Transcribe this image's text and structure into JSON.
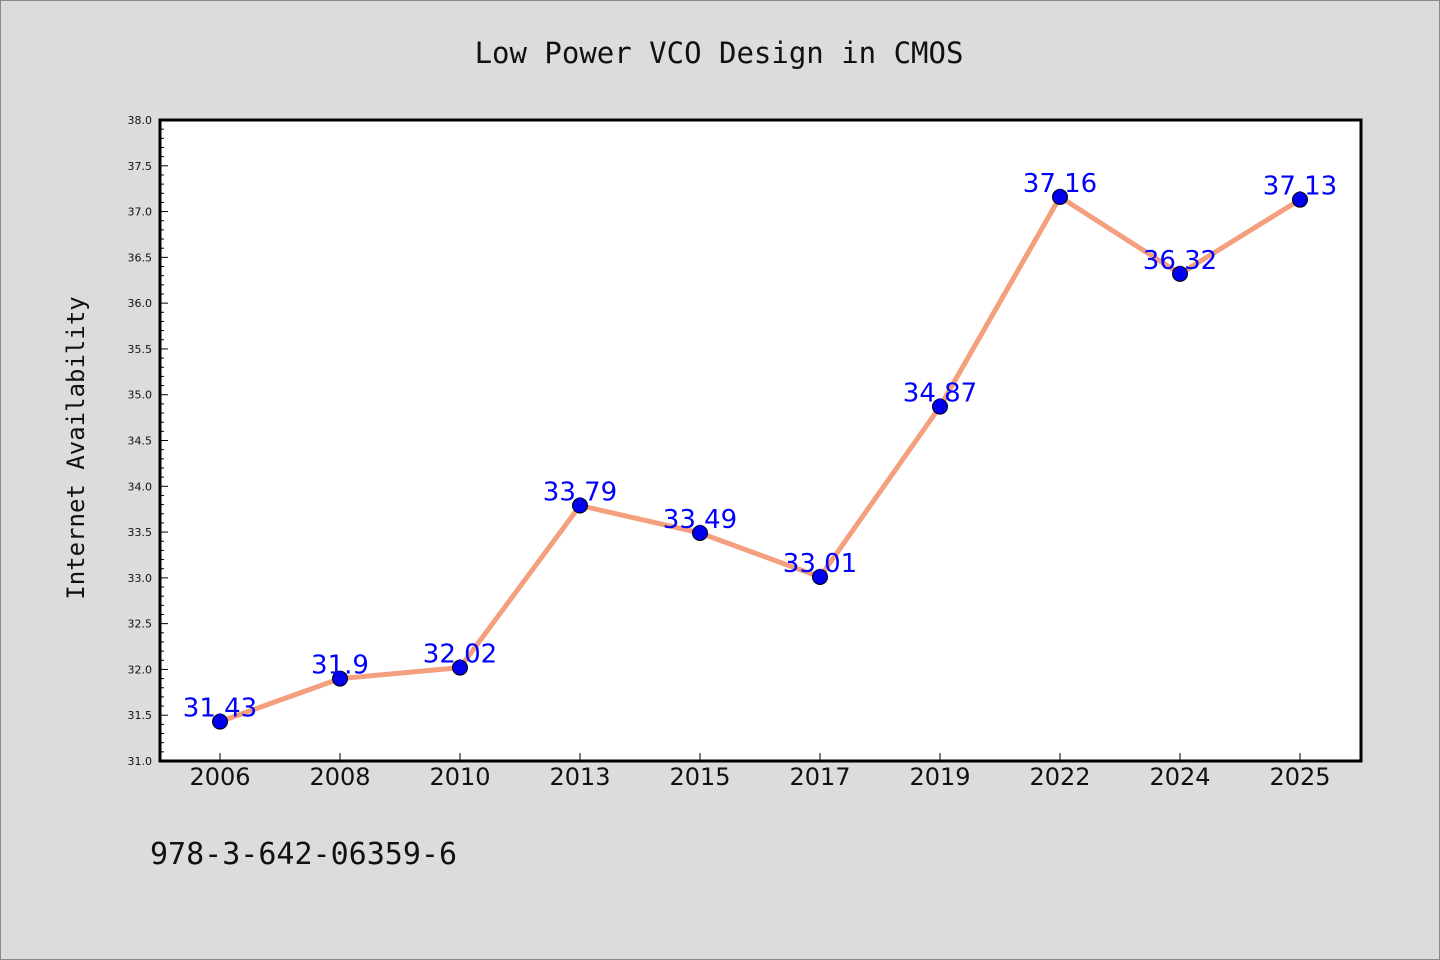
{
  "chart_data": {
    "type": "line",
    "title": "Low Power VCO Design in CMOS",
    "xlabel": "",
    "ylabel": "Internet Availability",
    "categories": [
      "2006",
      "2008",
      "2010",
      "2013",
      "2015",
      "2017",
      "2019",
      "2022",
      "2024",
      "2025"
    ],
    "series": [
      {
        "values": [
          31.43,
          31.9,
          32.02,
          33.79,
          33.49,
          33.01,
          34.87,
          37.16,
          36.32,
          37.13
        ],
        "data_labels": [
          "31.43",
          "31.9",
          "32.02",
          "33.79",
          "33.49",
          "33.01",
          "34.87",
          "37.16",
          "36.32",
          "37.13"
        ],
        "line_color": "#f4a07e",
        "marker_color": "#0000ee"
      }
    ],
    "ylim": [
      31.0,
      38.0
    ],
    "y_ticks": [
      "31.0",
      "31.5",
      "32.0",
      "32.5",
      "33.0",
      "33.5",
      "34.0",
      "34.5",
      "35.0",
      "35.5",
      "36.0",
      "36.5",
      "37.0",
      "37.5",
      "38.0"
    ],
    "grid": false,
    "label_color": "#0000ff",
    "footer_text": "978-3-642-06359-6"
  }
}
